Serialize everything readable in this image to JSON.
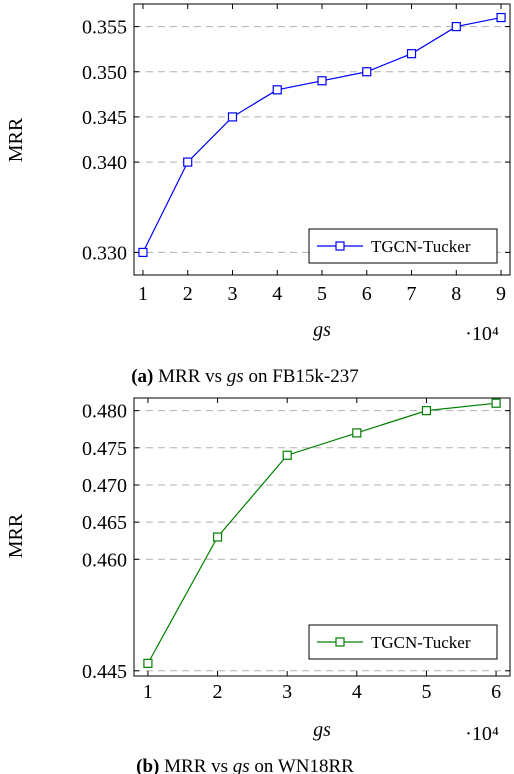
{
  "chart_data": [
    {
      "type": "line",
      "x": [
        1,
        2,
        3,
        4,
        5,
        6,
        7,
        8,
        9
      ],
      "series": [
        {
          "name": "TGCN-Tucker",
          "color": "#0000ff",
          "marker": "square",
          "values": [
            0.33,
            0.34,
            0.345,
            0.348,
            0.349,
            0.35,
            0.352,
            0.355,
            0.356
          ]
        }
      ],
      "xlabel": "gs",
      "x_multiplier": "·10⁴",
      "ylabel": "MRR",
      "xlim": [
        0.8,
        9.2
      ],
      "ylim": [
        0.3275,
        0.3575
      ],
      "xticks": [
        "1",
        "2",
        "3",
        "4",
        "5",
        "6",
        "7",
        "8",
        "9"
      ],
      "yticks": [
        0.33,
        0.34,
        0.345,
        0.35,
        0.355
      ],
      "ytick_labels": [
        "0.330",
        "0.340",
        "0.345",
        "0.350",
        "0.355"
      ],
      "grid": "horizontal dashed",
      "legend": "bottom-right",
      "caption": {
        "tag": "(a)",
        "pre": " MRR vs ",
        "var": "gs",
        "post": " on FB15k-237"
      }
    },
    {
      "type": "line",
      "x": [
        1,
        2,
        3,
        4,
        5,
        6
      ],
      "series": [
        {
          "name": "TGCN-Tucker",
          "color": "#008000",
          "marker": "square",
          "values": [
            0.446,
            0.463,
            0.474,
            0.477,
            0.48,
            0.481
          ]
        }
      ],
      "xlabel": "gs",
      "x_multiplier": "·10⁴",
      "ylabel": "MRR",
      "xlim": [
        0.8,
        6.2
      ],
      "ylim": [
        0.4443,
        0.4817
      ],
      "xticks": [
        "1",
        "2",
        "3",
        "4",
        "5",
        "6"
      ],
      "yticks": [
        0.445,
        0.46,
        0.465,
        0.47,
        0.475,
        0.48
      ],
      "ytick_labels": [
        "0.445",
        "0.460",
        "0.465",
        "0.470",
        "0.475",
        "0.480"
      ],
      "grid": "horizontal dashed",
      "legend": "bottom-right",
      "caption": {
        "tag": "(b)",
        "pre": " MRR vs ",
        "var": "gs",
        "post": " on WN18RR"
      }
    }
  ]
}
